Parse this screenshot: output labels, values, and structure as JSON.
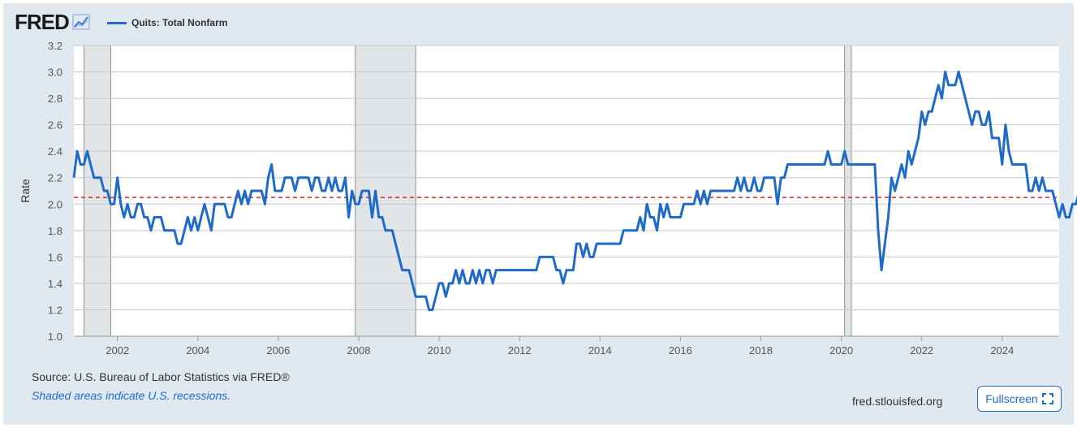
{
  "logo": {
    "text": "FRED",
    "icon": "chart-line-icon"
  },
  "legend": {
    "label": "Quits: Total Nonfarm",
    "color": "#1f6bcc"
  },
  "footer": {
    "source": "U.S. Bureau of Labor Statistics via FRED®",
    "source_prefix": "Source:",
    "note": "Shaded areas indicate U.S. recessions.",
    "site": "fred.stlouisfed.org",
    "fullscreen_label": "Fullscreen",
    "fullscreen_icon": "expand-icon"
  },
  "chart_data": {
    "type": "line",
    "title": "",
    "ylabel": "Rate",
    "xlabel": "",
    "ylim": [
      1.0,
      3.2
    ],
    "xlim": [
      "2000-12",
      "2025-06"
    ],
    "x_ticks": [
      "2002",
      "2004",
      "2006",
      "2008",
      "2010",
      "2012",
      "2014",
      "2016",
      "2018",
      "2020",
      "2022",
      "2024"
    ],
    "y_ticks": [
      "1.0",
      "1.2",
      "1.4",
      "1.6",
      "1.8",
      "2.0",
      "2.2",
      "2.4",
      "2.6",
      "2.8",
      "3.0",
      "3.2"
    ],
    "grid": true,
    "line_color": "#1f6bcc",
    "reference_line": {
      "value": 2.05,
      "color": "#d62728",
      "style": "dashed"
    },
    "recessions": [
      {
        "start": "2001-03",
        "end": "2001-11"
      },
      {
        "start": "2007-12",
        "end": "2009-06"
      },
      {
        "start": "2020-02",
        "end": "2020-04"
      }
    ],
    "series": [
      {
        "name": "Quits: Total Nonfarm",
        "start": "2000-12",
        "frequency": "monthly",
        "values": [
          2.2,
          2.4,
          2.3,
          2.3,
          2.4,
          2.3,
          2.2,
          2.2,
          2.2,
          2.1,
          2.1,
          2.0,
          2.0,
          2.2,
          2.0,
          1.9,
          2.0,
          1.9,
          1.9,
          2.0,
          2.0,
          1.9,
          1.9,
          1.8,
          1.9,
          1.9,
          1.9,
          1.8,
          1.8,
          1.8,
          1.8,
          1.7,
          1.7,
          1.8,
          1.9,
          1.8,
          1.9,
          1.8,
          1.9,
          2.0,
          1.9,
          1.8,
          2.0,
          2.0,
          2.0,
          2.0,
          1.9,
          1.9,
          2.0,
          2.1,
          2.0,
          2.1,
          2.0,
          2.1,
          2.1,
          2.1,
          2.1,
          2.0,
          2.2,
          2.3,
          2.1,
          2.1,
          2.1,
          2.2,
          2.2,
          2.2,
          2.1,
          2.2,
          2.2,
          2.2,
          2.2,
          2.1,
          2.2,
          2.2,
          2.1,
          2.1,
          2.2,
          2.1,
          2.2,
          2.1,
          2.1,
          2.2,
          1.9,
          2.1,
          2.0,
          2.0,
          2.1,
          2.1,
          2.1,
          1.9,
          2.1,
          1.9,
          1.9,
          1.8,
          1.8,
          1.8,
          1.7,
          1.6,
          1.5,
          1.5,
          1.5,
          1.4,
          1.3,
          1.3,
          1.3,
          1.3,
          1.2,
          1.2,
          1.3,
          1.4,
          1.4,
          1.3,
          1.4,
          1.4,
          1.5,
          1.4,
          1.5,
          1.4,
          1.4,
          1.5,
          1.4,
          1.5,
          1.4,
          1.5,
          1.5,
          1.4,
          1.5,
          1.5,
          1.5,
          1.5,
          1.5,
          1.5,
          1.5,
          1.5,
          1.5,
          1.5,
          1.5,
          1.5,
          1.5,
          1.6,
          1.6,
          1.6,
          1.6,
          1.6,
          1.5,
          1.5,
          1.4,
          1.5,
          1.5,
          1.5,
          1.7,
          1.7,
          1.6,
          1.7,
          1.6,
          1.6,
          1.7,
          1.7,
          1.7,
          1.7,
          1.7,
          1.7,
          1.7,
          1.7,
          1.8,
          1.8,
          1.8,
          1.8,
          1.8,
          1.9,
          1.8,
          2.0,
          1.9,
          1.9,
          1.8,
          2.0,
          1.9,
          2.0,
          1.9,
          1.9,
          1.9,
          1.9,
          2.0,
          2.0,
          2.0,
          2.0,
          2.1,
          2.0,
          2.1,
          2.0,
          2.1,
          2.1,
          2.1,
          2.1,
          2.1,
          2.1,
          2.1,
          2.1,
          2.2,
          2.1,
          2.2,
          2.1,
          2.1,
          2.2,
          2.1,
          2.1,
          2.2,
          2.2,
          2.2,
          2.2,
          2.0,
          2.2,
          2.2,
          2.3,
          2.3,
          2.3,
          2.3,
          2.3,
          2.3,
          2.3,
          2.3,
          2.3,
          2.3,
          2.3,
          2.3,
          2.4,
          2.3,
          2.3,
          2.3,
          2.3,
          2.4,
          2.3,
          2.3,
          2.3,
          2.3,
          2.3,
          2.3,
          2.3,
          2.3,
          2.3,
          1.8,
          1.5,
          1.7,
          1.9,
          2.2,
          2.1,
          2.2,
          2.3,
          2.2,
          2.4,
          2.3,
          2.4,
          2.5,
          2.7,
          2.6,
          2.7,
          2.7,
          2.8,
          2.9,
          2.8,
          3.0,
          2.9,
          2.9,
          2.9,
          3.0,
          2.9,
          2.8,
          2.7,
          2.6,
          2.7,
          2.7,
          2.6,
          2.6,
          2.7,
          2.5,
          2.5,
          2.5,
          2.3,
          2.6,
          2.4,
          2.3,
          2.3,
          2.3,
          2.3,
          2.3,
          2.1,
          2.1,
          2.2,
          2.1,
          2.2,
          2.1,
          2.1,
          2.1,
          2.0,
          1.9,
          2.0,
          1.9,
          1.9,
          2.0,
          2.0,
          2.1,
          2.0,
          2.0,
          2.0
        ]
      }
    ]
  }
}
